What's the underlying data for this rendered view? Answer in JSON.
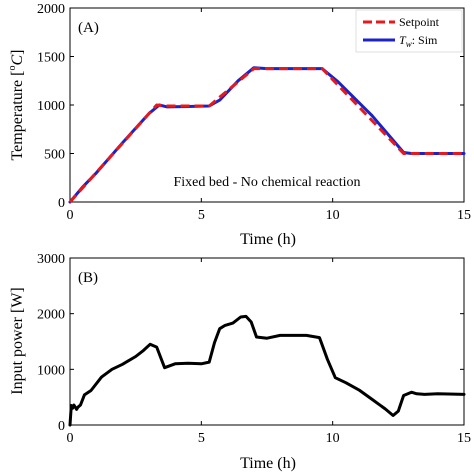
{
  "colors": {
    "setpoint": "#e8191c",
    "sim": "#1b22c8",
    "power": "#000000",
    "axes": "#000000",
    "background": "#ffffff"
  },
  "chart_data": [
    {
      "type": "line",
      "panel_label": "(A)",
      "xlabel": "Time (h)",
      "ylabel": "Temperature [°C]",
      "ylabel_parts": {
        "main": "Temperature [",
        "sup": "o",
        "unit": "C",
        "end": "]"
      },
      "xlim": [
        0,
        15
      ],
      "ylim": [
        0,
        2000
      ],
      "xticks": [
        0,
        5,
        10,
        15
      ],
      "yticks": [
        0,
        500,
        1000,
        1500,
        2000
      ],
      "grid": false,
      "legend_position": "top-right",
      "legend": [
        {
          "key": "setpoint",
          "label": "Setpoint",
          "style": "dashed"
        },
        {
          "key": "sim",
          "label_parts": {
            "T": "T",
            "sub": "w",
            "rest": ": Sim"
          },
          "style": "solid"
        }
      ],
      "annotation": "Fixed bed - No chemical reaction",
      "series": [
        {
          "key": "setpoint",
          "name": "Setpoint",
          "x": [
            0,
            3.3,
            3.6,
            5.3,
            7.0,
            9.6,
            12.7,
            15
          ],
          "y": [
            0,
            1000,
            990,
            990,
            1375,
            1375,
            500,
            500
          ]
        },
        {
          "key": "sim",
          "name": "Tw: Sim",
          "x": [
            0,
            0.5,
            1.0,
            2.0,
            3.0,
            3.4,
            3.7,
            4.5,
            5.3,
            5.7,
            6.4,
            7.0,
            7.5,
            8.5,
            9.6,
            10.2,
            11.5,
            12.7,
            13.0,
            14.0,
            15
          ],
          "y": [
            0,
            160,
            300,
            610,
            910,
            1000,
            980,
            985,
            990,
            1050,
            1250,
            1385,
            1375,
            1375,
            1375,
            1240,
            890,
            510,
            500,
            500,
            500
          ]
        }
      ]
    },
    {
      "type": "line",
      "panel_label": "(B)",
      "xlabel": "Time (h)",
      "ylabel": "Input power [W]",
      "xlim": [
        0,
        15
      ],
      "ylim": [
        0,
        3000
      ],
      "xticks": [
        0,
        5,
        10,
        15
      ],
      "yticks": [
        0,
        1000,
        2000,
        3000
      ],
      "grid": false,
      "series": [
        {
          "key": "power",
          "name": "",
          "x": [
            0,
            0.05,
            0.1,
            0.15,
            0.25,
            0.3,
            0.4,
            0.55,
            0.8,
            1.2,
            1.6,
            2.0,
            2.5,
            2.8,
            3.05,
            3.3,
            3.6,
            4.0,
            4.5,
            5.0,
            5.3,
            5.5,
            5.7,
            5.9,
            6.2,
            6.5,
            6.7,
            6.9,
            7.1,
            7.5,
            8.0,
            9.0,
            9.5,
            9.8,
            10.1,
            10.5,
            11.0,
            11.5,
            12.0,
            12.3,
            12.5,
            12.7,
            13.0,
            13.2,
            13.5,
            14.0,
            15.0
          ],
          "y": [
            0,
            350,
            300,
            360,
            280,
            320,
            360,
            540,
            620,
            860,
            1000,
            1090,
            1230,
            1340,
            1450,
            1400,
            1030,
            1100,
            1110,
            1100,
            1130,
            1480,
            1730,
            1790,
            1830,
            1940,
            1950,
            1850,
            1580,
            1560,
            1610,
            1610,
            1570,
            1180,
            850,
            760,
            630,
            460,
            290,
            170,
            250,
            530,
            590,
            560,
            550,
            560,
            550
          ]
        }
      ]
    }
  ]
}
